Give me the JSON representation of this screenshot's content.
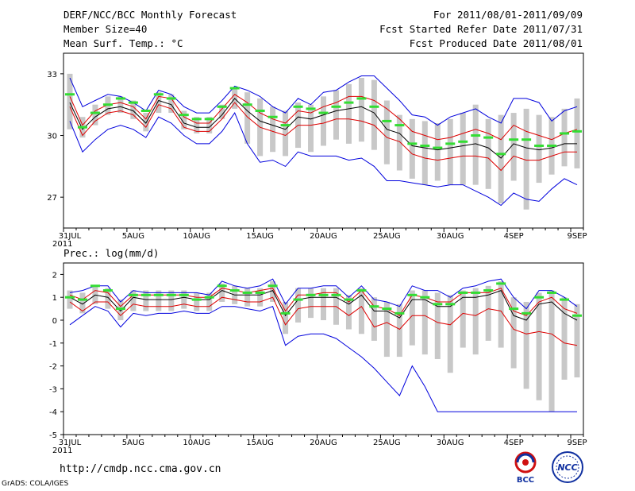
{
  "header": {
    "title": "DERF/NCC/BCC Monthly Forecast",
    "member_size": "Member Size=40",
    "variable": "Mean Surf. Temp.: °C",
    "period": "For 2011/08/01-2011/09/09",
    "started": "Fcst Started Refer Date 2011/07/31",
    "produced": "Fcst Produced Date 2011/08/01"
  },
  "footer": {
    "url": "http://cmdp.ncc.cma.gov.cn",
    "credit": "GrADS: COLA/IGES",
    "logo_bcc": "BCC",
    "logo_ncc": "NCC"
  },
  "chart_data": [
    {
      "type": "line",
      "title": "Mean Surf. Temp.: °C",
      "x_tick_labels": [
        "31JUL\n2011",
        "5AUG",
        "10AUG",
        "15AUG",
        "20AUG",
        "25AUG",
        "30AUG",
        "4SEP",
        "9SEP"
      ],
      "x_tick_days": [
        0,
        5,
        10,
        15,
        20,
        25,
        30,
        35,
        40
      ],
      "ylim": [
        25.5,
        34
      ],
      "y_ticks": [
        27,
        30,
        33
      ],
      "series": [
        {
          "name": "max",
          "color": "#0000dd",
          "values": [
            32.8,
            31.4,
            31.7,
            32.0,
            31.9,
            31.6,
            31.2,
            32.2,
            32.0,
            31.4,
            31.1,
            31.1,
            31.7,
            32.4,
            32.2,
            31.9,
            31.4,
            31.1,
            31.8,
            31.5,
            32.1,
            32.2,
            32.6,
            32.9,
            32.9,
            32.3,
            31.7,
            31.0,
            30.9,
            30.5,
            30.9,
            31.1,
            31.3,
            30.9,
            30.6,
            31.8,
            31.8,
            31.6,
            30.7,
            31.2,
            31.4
          ]
        },
        {
          "name": "p90",
          "color": "#dd0000",
          "values": [
            31.9,
            30.5,
            31.2,
            31.5,
            31.6,
            31.4,
            30.8,
            31.9,
            31.8,
            30.9,
            30.6,
            30.6,
            31.3,
            32.0,
            31.6,
            31.1,
            30.8,
            30.6,
            31.2,
            31.1,
            31.4,
            31.6,
            31.9,
            31.9,
            31.7,
            31.3,
            30.8,
            30.2,
            30.0,
            29.8,
            29.9,
            30.1,
            30.3,
            30.1,
            29.8,
            30.5,
            30.2,
            30.0,
            29.8,
            30.1,
            30.3
          ]
        },
        {
          "name": "mean",
          "color": "#000000",
          "values": [
            31.6,
            30.3,
            30.9,
            31.3,
            31.4,
            31.2,
            30.6,
            31.7,
            31.5,
            30.6,
            30.4,
            30.4,
            31.0,
            31.8,
            31.2,
            30.7,
            30.5,
            30.3,
            30.9,
            30.8,
            31.0,
            31.2,
            31.3,
            31.4,
            31.1,
            30.3,
            30.1,
            29.5,
            29.4,
            29.3,
            29.4,
            29.5,
            29.6,
            29.4,
            28.9,
            29.6,
            29.4,
            29.3,
            29.4,
            29.6,
            29.6
          ]
        },
        {
          "name": "p10",
          "color": "#dd0000",
          "values": [
            31.4,
            30.0,
            30.7,
            31.1,
            31.2,
            31.0,
            30.4,
            31.5,
            31.3,
            30.4,
            30.2,
            30.2,
            30.8,
            31.6,
            30.9,
            30.4,
            30.2,
            30.0,
            30.5,
            30.5,
            30.6,
            30.8,
            30.8,
            30.7,
            30.5,
            29.9,
            29.7,
            29.1,
            28.9,
            28.8,
            28.9,
            29.0,
            29.0,
            28.9,
            28.3,
            29.0,
            28.8,
            28.8,
            29.0,
            29.2,
            29.2
          ]
        },
        {
          "name": "min",
          "color": "#0000dd",
          "values": [
            30.7,
            29.2,
            29.8,
            30.3,
            30.5,
            30.3,
            29.9,
            30.9,
            30.6,
            30.0,
            29.6,
            29.6,
            30.2,
            31.1,
            29.6,
            28.7,
            28.8,
            28.5,
            29.2,
            29.0,
            29.0,
            29.0,
            28.8,
            28.9,
            28.5,
            27.8,
            27.8,
            27.7,
            27.6,
            27.5,
            27.6,
            27.6,
            27.3,
            27.0,
            26.6,
            27.2,
            26.9,
            26.8,
            27.4,
            27.9,
            27.6
          ]
        },
        {
          "name": "box_top",
          "color": "#c8c8c8",
          "values": [
            33.0,
            30.9,
            31.5,
            31.9,
            31.9,
            31.7,
            31.1,
            32.1,
            32.0,
            31.2,
            30.9,
            30.9,
            31.5,
            32.3,
            32.1,
            31.8,
            31.4,
            31.2,
            31.6,
            31.5,
            31.9,
            32.2,
            32.5,
            32.8,
            32.7,
            31.7,
            31.0,
            30.8,
            30.7,
            30.6,
            30.8,
            31.1,
            31.5,
            30.8,
            31.0,
            31.1,
            31.3,
            31.0,
            30.9,
            31.3,
            31.8
          ]
        },
        {
          "name": "box_bottom",
          "color": "#c8c8c8",
          "values": [
            30.3,
            29.9,
            30.5,
            31.0,
            31.1,
            30.8,
            30.2,
            31.1,
            31.1,
            30.3,
            30.1,
            30.1,
            30.8,
            31.3,
            29.6,
            29.0,
            29.2,
            29.0,
            29.4,
            29.2,
            29.5,
            29.8,
            29.6,
            29.7,
            29.3,
            28.6,
            28.3,
            27.9,
            27.6,
            27.8,
            27.6,
            27.6,
            27.6,
            27.4,
            26.7,
            27.8,
            26.4,
            27.7,
            28.1,
            28.5,
            28.4
          ]
        },
        {
          "name": "obs_bar",
          "color": "#33dd33",
          "values": [
            32.0,
            30.4,
            31.1,
            31.5,
            31.8,
            31.6,
            31.2,
            32.0,
            31.8,
            31.0,
            30.8,
            30.8,
            31.4,
            32.3,
            31.5,
            31.2,
            30.9,
            30.5,
            31.4,
            31.3,
            31.1,
            31.4,
            31.6,
            31.8,
            31.4,
            30.7,
            30.5,
            29.6,
            29.5,
            29.4,
            29.6,
            29.7,
            30.0,
            29.9,
            29.1,
            29.8,
            29.8,
            29.5,
            29.5,
            30.1,
            30.2
          ]
        }
      ]
    },
    {
      "type": "line",
      "title": "Prec.: log(mm/d)",
      "x_tick_labels": [
        "31JUL\n2011",
        "5AUG",
        "10AUG",
        "15AUG",
        "20AUG",
        "25AUG",
        "30AUG",
        "4SEP",
        "9SEP"
      ],
      "x_tick_days": [
        0,
        5,
        10,
        15,
        20,
        25,
        30,
        35,
        40
      ],
      "ylim": [
        -5,
        2.5
      ],
      "y_ticks": [
        -5,
        -4,
        -3,
        -2,
        -1,
        0,
        1,
        2
      ],
      "series": [
        {
          "name": "max",
          "color": "#0000dd",
          "values": [
            1.2,
            1.3,
            1.5,
            1.5,
            0.8,
            1.3,
            1.2,
            1.2,
            1.2,
            1.2,
            1.2,
            1.1,
            1.7,
            1.5,
            1.4,
            1.5,
            1.8,
            0.7,
            1.4,
            1.4,
            1.5,
            1.5,
            1.0,
            1.5,
            0.9,
            0.8,
            0.6,
            1.5,
            1.3,
            1.3,
            1.0,
            1.4,
            1.5,
            1.7,
            1.8,
            1.0,
            0.5,
            1.3,
            1.3,
            1.0,
            0.6
          ]
        },
        {
          "name": "p90",
          "color": "#dd0000",
          "values": [
            1.1,
            0.9,
            1.3,
            1.2,
            0.6,
            1.1,
            1.1,
            1.1,
            1.1,
            1.1,
            1.0,
            1.0,
            1.4,
            1.3,
            1.2,
            1.3,
            1.4,
            0.4,
            1.1,
            1.1,
            1.2,
            1.2,
            0.8,
            1.3,
            0.6,
            0.5,
            0.2,
            1.1,
            1.0,
            0.8,
            0.8,
            1.2,
            1.2,
            1.2,
            1.4,
            0.4,
            0.2,
            0.8,
            1.0,
            0.5,
            0.3
          ]
        },
        {
          "name": "mean",
          "color": "#000000",
          "values": [
            1.0,
            0.7,
            1.1,
            1.0,
            0.4,
            1.0,
            0.9,
            0.9,
            0.9,
            1.0,
            0.9,
            0.9,
            1.3,
            1.1,
            1.1,
            1.1,
            1.3,
            0.2,
            0.9,
            1.0,
            1.0,
            1.0,
            0.7,
            1.1,
            0.4,
            0.4,
            0.1,
            0.9,
            0.9,
            0.6,
            0.6,
            1.0,
            1.0,
            1.1,
            1.3,
            0.2,
            0.0,
            0.7,
            0.8,
            0.3,
            0.0
          ]
        },
        {
          "name": "p10",
          "color": "#dd0000",
          "values": [
            0.8,
            0.4,
            0.8,
            0.8,
            0.2,
            0.7,
            0.6,
            0.6,
            0.6,
            0.7,
            0.6,
            0.6,
            1.0,
            0.9,
            0.8,
            0.8,
            1.0,
            -0.2,
            0.5,
            0.6,
            0.6,
            0.6,
            0.2,
            0.6,
            -0.3,
            -0.1,
            -0.4,
            0.2,
            0.2,
            -0.1,
            -0.2,
            0.3,
            0.2,
            0.5,
            0.4,
            -0.4,
            -0.6,
            -0.5,
            -0.6,
            -1.0,
            -1.1
          ]
        },
        {
          "name": "min",
          "color": "#0000dd",
          "values": [
            -0.2,
            0.2,
            0.6,
            0.4,
            -0.3,
            0.3,
            0.2,
            0.3,
            0.3,
            0.4,
            0.3,
            0.3,
            0.6,
            0.6,
            0.5,
            0.4,
            0.6,
            -1.1,
            -0.7,
            -0.6,
            -0.6,
            -0.8,
            -1.2,
            -1.6,
            -2.1,
            -2.7,
            -3.3,
            -2.0,
            -2.9,
            -4.0,
            -4.0,
            -4.0,
            -4.0,
            -4.0,
            -4.0,
            -4.0,
            -4.0,
            -4.0,
            -4.0,
            -4.0,
            -4.0
          ]
        },
        {
          "name": "box_top",
          "color": "#c8c8c8",
          "values": [
            1.3,
            1.2,
            1.5,
            1.4,
            0.9,
            1.3,
            1.3,
            1.3,
            1.3,
            1.3,
            1.2,
            1.2,
            1.6,
            1.5,
            1.4,
            1.4,
            1.7,
            0.8,
            1.4,
            1.4,
            1.4,
            1.4,
            1.1,
            1.4,
            1.0,
            0.8,
            0.7,
            1.3,
            1.3,
            1.2,
            1.1,
            1.3,
            1.4,
            1.5,
            1.7,
            1.0,
            0.8,
            1.2,
            1.3,
            1.0,
            0.7
          ]
        },
        {
          "name": "box_bottom",
          "color": "#c8c8c8",
          "values": [
            0.5,
            0.3,
            0.7,
            0.5,
            0.0,
            0.4,
            0.4,
            0.4,
            0.4,
            0.5,
            0.4,
            0.4,
            0.8,
            0.7,
            0.6,
            0.6,
            0.8,
            -0.6,
            -0.1,
            0.1,
            0.0,
            -0.2,
            -0.4,
            -0.6,
            -0.9,
            -1.6,
            -1.6,
            -1.1,
            -1.5,
            -1.7,
            -2.3,
            -1.2,
            -1.5,
            -0.9,
            -1.2,
            -2.1,
            -3.0,
            -3.5,
            -4.0,
            -2.6,
            -2.5
          ]
        },
        {
          "name": "obs_bar",
          "color": "#33dd33",
          "values": [
            1.0,
            0.9,
            1.5,
            1.3,
            0.5,
            1.1,
            1.1,
            1.1,
            1.1,
            1.1,
            0.9,
            1.0,
            1.5,
            1.3,
            1.2,
            1.2,
            1.5,
            0.3,
            0.9,
            1.1,
            1.1,
            1.1,
            0.9,
            1.3,
            0.6,
            0.5,
            0.3,
            1.1,
            1.0,
            0.7,
            0.7,
            1.2,
            1.2,
            1.3,
            1.6,
            0.5,
            0.3,
            1.0,
            1.2,
            0.9,
            0.2
          ]
        }
      ]
    }
  ]
}
